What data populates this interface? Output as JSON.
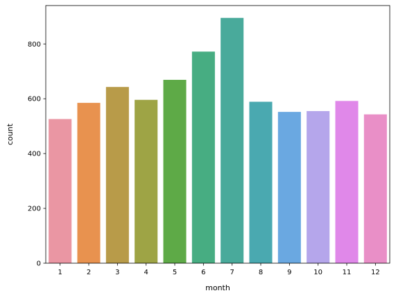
{
  "chart_data": {
    "type": "bar",
    "categories": [
      "1",
      "2",
      "3",
      "4",
      "5",
      "6",
      "7",
      "8",
      "9",
      "10",
      "11",
      "12"
    ],
    "values": [
      526,
      585,
      643,
      596,
      669,
      772,
      895,
      589,
      552,
      555,
      592,
      543
    ],
    "xlabel": "month",
    "ylabel": "count",
    "ylim": [
      0,
      940
    ],
    "yticks": [
      0,
      200,
      400,
      600,
      800
    ],
    "grid": false,
    "colors": [
      "#ea96a3",
      "#e8924f",
      "#b89b49",
      "#9ea445",
      "#5eaa47",
      "#47ad82",
      "#49aa9b",
      "#4aa9b0",
      "#6aa8e1",
      "#b5a6eb",
      "#e088e9",
      "#e98fc7"
    ]
  }
}
